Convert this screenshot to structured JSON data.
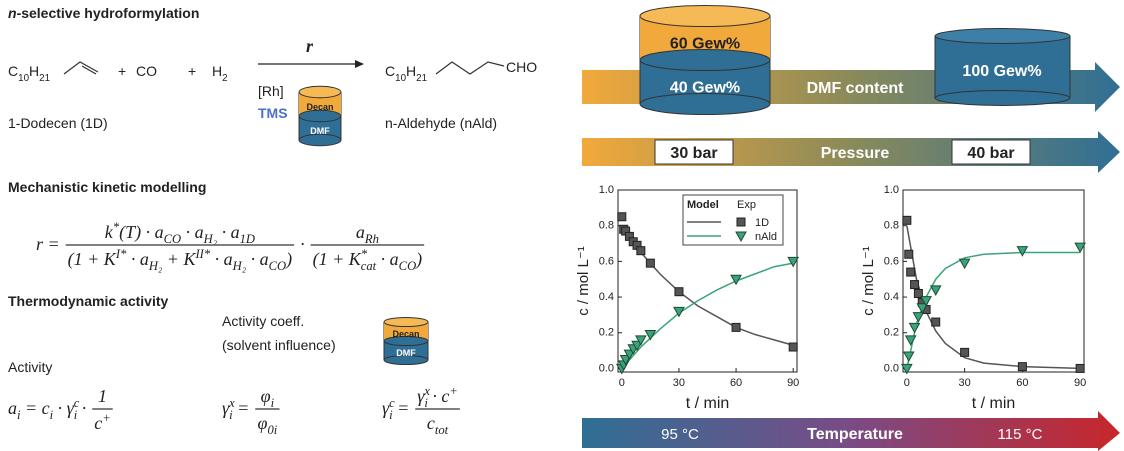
{
  "hydroformylation": {
    "title_prefix": "n",
    "title": "-selective hydroformylation",
    "reactant": [
      "C",
      {
        "sub": "10"
      },
      "H",
      {
        "sub": "21"
      }
    ],
    "plus1": "+",
    "co": "CO",
    "plus2": "+",
    "h2": [
      "H",
      {
        "sub": "2"
      }
    ],
    "rate": "r",
    "catalyst": "[Rh]",
    "tms": "TMS",
    "decan": "Decan",
    "dmf": "DMF",
    "product": [
      "C",
      {
        "sub": "10"
      },
      "H",
      {
        "sub": "21"
      }
    ],
    "cho": "CHO",
    "reactant_name": "1-Dodecen (1D)",
    "product_name": "n-Aldehyde (nAld)"
  },
  "kinetics": {
    "title": "Mechanistic kinetic modelling",
    "equation": [
      {
        "text": [
          "r ="
        ]
      },
      {
        "num": [
          "k",
          {
            "sup": "*"
          },
          "(T) · a",
          {
            "sub": "CO"
          },
          " · a",
          {
            "sub": "H₂"
          },
          " · a",
          {
            "sub": "1D"
          }
        ],
        "den": [
          "(1 + K",
          {
            "sup": "I*"
          },
          " · a",
          {
            "sub": "H₂"
          },
          " + K",
          {
            "sup": "II*"
          },
          " · a",
          {
            "sub": "H₂"
          },
          " · a",
          {
            "sub": "CO"
          },
          ")"
        ]
      },
      {
        "text": [
          "·"
        ]
      },
      {
        "num": [
          "a",
          {
            "sub": "Rh"
          }
        ],
        "den": [
          "(1 + K",
          {
            "sup": "*",
            "sub": "cat"
          },
          " · a",
          {
            "sub": "CO"
          },
          ")"
        ]
      }
    ]
  },
  "thermo": {
    "title": "Thermodynamic activity",
    "activity_label": "Activity",
    "coeff_label": "Activity coeff.",
    "coeff_note": "(solvent influence)",
    "decan": "Decan",
    "dmf": "DMF",
    "eq1": [
      {
        "text": [
          "a",
          {
            "sub": "i"
          },
          " = c",
          {
            "sub": "i"
          },
          " · γ",
          {
            "sup": "c",
            "sub": "i"
          },
          " ·"
        ]
      },
      {
        "num": [
          "1"
        ],
        "den": [
          "c",
          {
            "sup": "+"
          }
        ]
      }
    ],
    "eq2": [
      {
        "text": [
          "γ",
          {
            "sup": "x",
            "sub": "i"
          },
          " ="
        ]
      },
      {
        "num": [
          "φ",
          {
            "sub": "i"
          }
        ],
        "den": [
          "φ",
          {
            "sub": "0i"
          }
        ]
      }
    ],
    "eq3": [
      {
        "text": [
          "γ",
          {
            "sup": "c",
            "sub": "i"
          },
          " ="
        ]
      },
      {
        "num": [
          "γ",
          {
            "sup": "x",
            "sub": "i"
          },
          " · c",
          {
            "sup": "+"
          }
        ],
        "den": [
          "c",
          {
            "sub": "tot"
          }
        ]
      }
    ]
  },
  "process": {
    "decan_content": "60 Gew%",
    "dmf_content_low": "40 Gew%",
    "dmf_label": "DMF content",
    "dmf_content_high": "100 Gew%",
    "pressure_low": "30 bar",
    "pressure_label": "Pressure",
    "pressure_high": "40 bar",
    "temperature_low": "95 °C",
    "temperature_label": "Temperature",
    "temperature_high": "115 °C"
  },
  "chart_data": [
    {
      "type": "scatter",
      "x_label": "t / min",
      "y_label": "c / mol L⁻¹",
      "xlim": [
        -2,
        92
      ],
      "ylim": [
        -0.02,
        1.0
      ],
      "xticks": [
        0,
        30,
        60,
        90
      ],
      "yticks": [
        {
          "value": 0,
          "label": "0.0"
        },
        0.2,
        0.4,
        0.6,
        0.8,
        {
          "value": 1,
          "label": "1.0"
        }
      ],
      "legend": {
        "position": "upper right",
        "titles": [
          "Model",
          "Exp"
        ]
      },
      "series": [
        {
          "name": "1D",
          "color": "#555555",
          "marker": "square",
          "x": [
            0,
            1,
            2,
            4,
            6,
            8,
            10,
            15,
            30,
            60,
            90
          ],
          "values": [
            0.85,
            0.78,
            0.77,
            0.74,
            0.71,
            0.69,
            0.66,
            0.59,
            0.43,
            0.23,
            0.12
          ],
          "model_x": [
            0,
            10,
            20,
            30,
            40,
            50,
            60,
            70,
            80,
            90
          ],
          "model_values": [
            0.79,
            0.65,
            0.53,
            0.43,
            0.35,
            0.29,
            0.23,
            0.19,
            0.16,
            0.13
          ]
        },
        {
          "name": "nAld",
          "color": "#3aa37a",
          "marker": "triangle",
          "x": [
            0,
            1,
            2,
            4,
            6,
            8,
            10,
            15,
            30,
            60,
            90
          ],
          "values": [
            0.0,
            0.02,
            0.05,
            0.08,
            0.11,
            0.13,
            0.16,
            0.19,
            0.32,
            0.5,
            0.6
          ],
          "model_x": [
            0,
            10,
            20,
            30,
            40,
            50,
            60,
            70,
            80,
            90
          ],
          "model_values": [
            0,
            0.12,
            0.22,
            0.31,
            0.38,
            0.44,
            0.49,
            0.53,
            0.57,
            0.59
          ]
        }
      ]
    },
    {
      "type": "scatter",
      "x_label": "t / min",
      "y_label": "c / mol L⁻¹",
      "xlim": [
        -2,
        92
      ],
      "ylim": [
        -0.02,
        1.0
      ],
      "xticks": [
        0,
        30,
        60,
        90
      ],
      "yticks": [
        {
          "value": 0,
          "label": "0.0"
        },
        0.2,
        0.4,
        0.6,
        0.8,
        {
          "value": 1,
          "label": "1.0"
        }
      ],
      "series": [
        {
          "color": "#555555",
          "marker": "square",
          "x": [
            0,
            1,
            2,
            4,
            6,
            8,
            10,
            15,
            30,
            60,
            90
          ],
          "values": [
            0.83,
            0.64,
            0.54,
            0.47,
            0.42,
            0.37,
            0.33,
            0.26,
            0.09,
            0.01,
            0.0
          ],
          "model_x": [
            0,
            5,
            10,
            15,
            20,
            30,
            40,
            60,
            90
          ],
          "model_values": [
            0.8,
            0.5,
            0.32,
            0.21,
            0.14,
            0.06,
            0.03,
            0.01,
            0.0
          ]
        },
        {
          "color": "#3aa37a",
          "marker": "triangle",
          "x": [
            0,
            1,
            2,
            4,
            6,
            8,
            10,
            15,
            30,
            60,
            90
          ],
          "values": [
            0.0,
            0.07,
            0.16,
            0.23,
            0.29,
            0.34,
            0.38,
            0.44,
            0.59,
            0.66,
            0.68
          ],
          "model_x": [
            0,
            5,
            10,
            15,
            20,
            30,
            40,
            60,
            90
          ],
          "model_values": [
            0,
            0.25,
            0.4,
            0.5,
            0.56,
            0.62,
            0.64,
            0.65,
            0.65
          ]
        }
      ]
    }
  ]
}
